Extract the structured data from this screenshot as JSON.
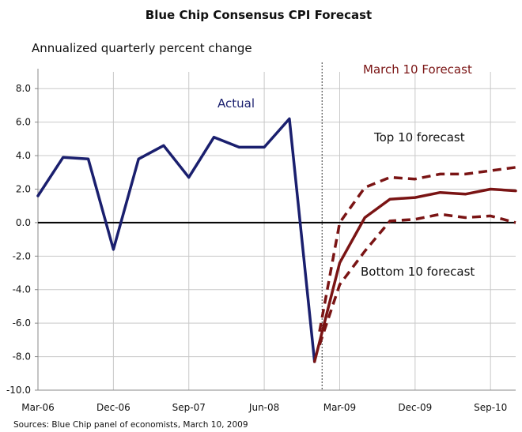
{
  "chart_data": {
    "type": "line",
    "title": "Blue Chip Consensus CPI Forecast",
    "ylabel": "Annualized quarterly percent change",
    "xlabel": "",
    "ylim": [
      -10,
      9
    ],
    "yticks": [
      8,
      6,
      4,
      2,
      0,
      -2,
      -4,
      -6,
      -8,
      -10
    ],
    "ytick_labels": [
      "8.0",
      "6.0",
      "4.0",
      "2.0",
      "0.0",
      "-2.0",
      "-4.0",
      "-6.0",
      "-8.0",
      "-10.0"
    ],
    "x_index_range": [
      0,
      19
    ],
    "xtick_positions": [
      0,
      3,
      6,
      9,
      12,
      15,
      18
    ],
    "xtick_labels": [
      "Mar-06",
      "Dec-06",
      "Sep-07",
      "Jun-08",
      "Mar-09",
      "Dec-09",
      "Sep-10"
    ],
    "divider_index": 11.3,
    "grid": true,
    "series": [
      {
        "name": "Actual",
        "color": "#1a1f6e",
        "style": "solid",
        "x": [
          0,
          1,
          2,
          3,
          4,
          5,
          6,
          7,
          8,
          9,
          10,
          11
        ],
        "values": [
          1.6,
          3.9,
          3.8,
          -1.6,
          3.8,
          4.6,
          2.7,
          5.1,
          4.5,
          4.5,
          6.2,
          -8.3
        ]
      },
      {
        "name": "March 10 Forecast",
        "color": "#7a1414",
        "style": "solid",
        "x": [
          11,
          12,
          13,
          14,
          15,
          16,
          17,
          18,
          19
        ],
        "values": [
          -8.3,
          -2.4,
          0.3,
          1.4,
          1.5,
          1.8,
          1.7,
          2.0,
          1.9
        ]
      },
      {
        "name": "Top 10 forecast",
        "color": "#7a1414",
        "style": "dashed",
        "x": [
          11.2,
          12,
          13,
          14,
          15,
          16,
          17,
          18,
          19
        ],
        "values": [
          -6.5,
          0.0,
          2.1,
          2.7,
          2.6,
          2.9,
          2.9,
          3.1,
          3.3
        ]
      },
      {
        "name": "Bottom 10 forecast",
        "color": "#7a1414",
        "style": "dashed",
        "x": [
          11.2,
          12,
          13,
          14,
          15,
          16,
          17,
          18,
          19
        ],
        "values": [
          -7.3,
          -3.7,
          -1.7,
          0.1,
          0.2,
          0.5,
          0.3,
          0.4,
          0.0
        ]
      }
    ],
    "annotations": [
      {
        "id": "actual",
        "text": "Actual",
        "color": "#1a1f6e"
      },
      {
        "id": "march",
        "text": "March 10 Forecast",
        "color": "#7a1414"
      },
      {
        "id": "top",
        "text": "Top 10 forecast",
        "color": "#111111"
      },
      {
        "id": "bottom",
        "text": "Bottom 10 forecast",
        "color": "#111111"
      }
    ],
    "source": "Sources: Blue Chip panel of economists, March 10, 2009"
  }
}
